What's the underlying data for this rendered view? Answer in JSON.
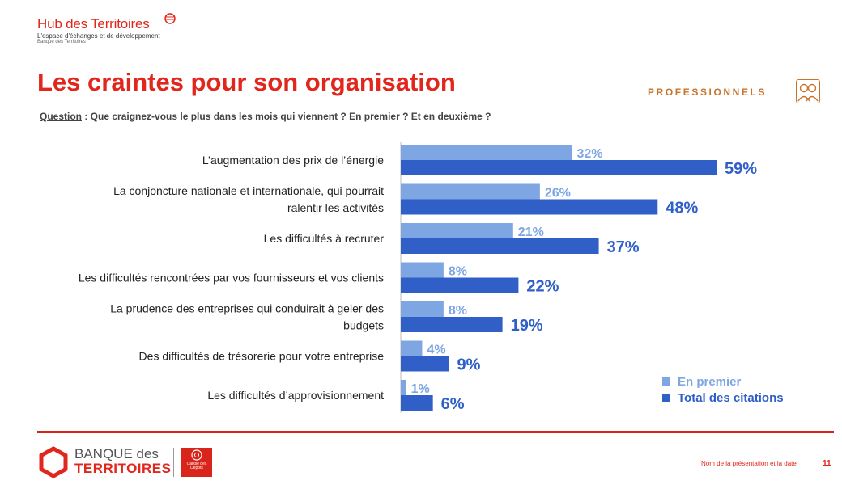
{
  "header": {
    "brand": "Hub des Territoires",
    "brand_sub": "L'espace d'échanges et de développement",
    "brand_sub2": "Banque des Territoires",
    "title": "Les craintes pour son organisation",
    "tag": "PROFESSIONNELS",
    "question_label": "Question",
    "question_text": " : Que craignez-vous le plus dans les mois qui viennent ? En premier ? Et en deuxième ?"
  },
  "colors": {
    "brand_red": "#e1261c",
    "series_light": "#7ea6e3",
    "series_dark": "#2f5fc7",
    "tag_orange": "#c9742a"
  },
  "chart_data": {
    "type": "bar",
    "orientation": "horizontal",
    "categories": [
      [
        "L’augmentation des prix de l’énergie"
      ],
      [
        "La conjoncture nationale et internationale, qui pourrait",
        "ralentir les activités"
      ],
      [
        "Les difficultés à recruter"
      ],
      [
        "Les difficultés rencontrées par vos fournisseurs et vos clients"
      ],
      [
        "La prudence des entreprises qui conduirait à geler des",
        "budgets"
      ],
      [
        "Des difficultés de trésorerie pour votre entreprise"
      ],
      [
        "Les difficultés d’approvisionnement"
      ]
    ],
    "series": [
      {
        "name": "En premier",
        "color": "#7ea6e3",
        "values": [
          32,
          26,
          21,
          8,
          8,
          4,
          1
        ]
      },
      {
        "name": "Total des citations",
        "color": "#2f5fc7",
        "values": [
          59,
          48,
          37,
          22,
          19,
          9,
          6
        ]
      }
    ],
    "value_suffix": "%",
    "xlim": [
      0,
      70
    ],
    "legend_position": "bottom-right",
    "grid": false
  },
  "legend": {
    "first": "En premier",
    "total": "Total des citations"
  },
  "footer": {
    "logo_line1": "BANQUE des",
    "logo_line2": "TERRITOIRES",
    "cdc_label": "Caisse des Dépôts",
    "note": "Nom de la présentation et la date",
    "page": "11"
  }
}
